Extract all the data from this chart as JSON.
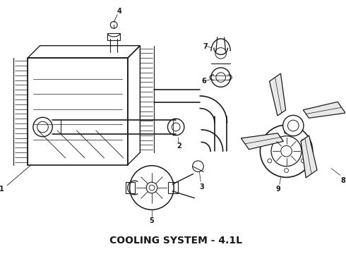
{
  "title": "COOLING SYSTEM - 4.1L",
  "title_fontsize": 10,
  "title_fontweight": "bold",
  "bg_color": "#ffffff",
  "line_color": "#1a1a1a",
  "fig_width": 4.9,
  "fig_height": 3.6,
  "dpi": 100
}
